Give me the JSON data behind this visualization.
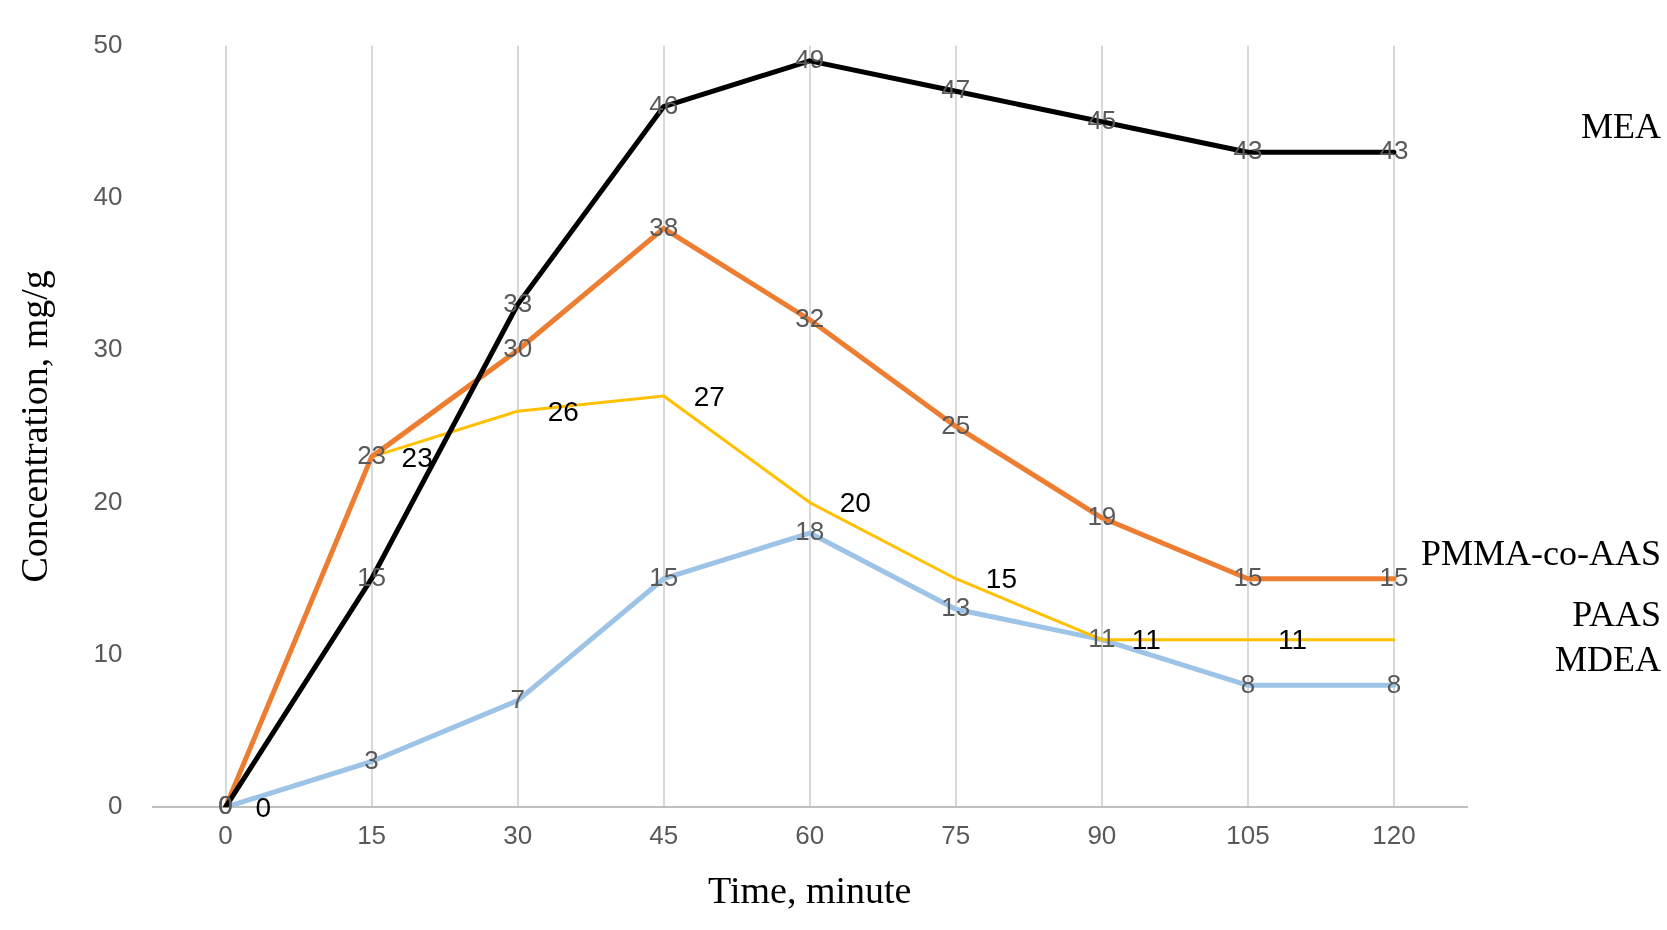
{
  "chart_data": {
    "type": "line",
    "xlabel": "Time, minute",
    "ylabel": "Concentration, mg/g",
    "categories": [
      "0",
      "15",
      "30",
      "45",
      "60",
      "75",
      "90",
      "105",
      "120"
    ],
    "series": [
      {
        "name": "MEA",
        "color": "#000000",
        "values": [
          0,
          15,
          33,
          46,
          49,
          47,
          45,
          43,
          43
        ]
      },
      {
        "name": "PMMA-co-AAS",
        "color": "#ed7d31",
        "values": [
          0,
          23,
          30,
          38,
          32,
          25,
          19,
          15,
          15
        ]
      },
      {
        "name": "PAAS",
        "color": "#ffc000",
        "values": [
          0,
          23,
          26,
          27,
          20,
          15,
          11,
          11,
          11
        ],
        "value_labels": [
          "0",
          "23",
          "26",
          "27",
          "20",
          "15",
          "11",
          "11",
          null
        ]
      },
      {
        "name": "MDEA",
        "color": "#9dc3e6",
        "values": [
          0,
          3,
          7,
          15,
          18,
          13,
          11,
          8,
          8
        ],
        "value_labels": [
          null,
          "3",
          "7",
          "15",
          "18",
          "13",
          "11",
          "8",
          "8"
        ]
      }
    ],
    "ylim": [
      0,
      50
    ],
    "yticks": [
      0,
      10,
      20,
      30,
      40,
      50
    ],
    "grid": "x",
    "legend": false,
    "marker": "none",
    "line_style": "solid",
    "data_labels": true
  }
}
